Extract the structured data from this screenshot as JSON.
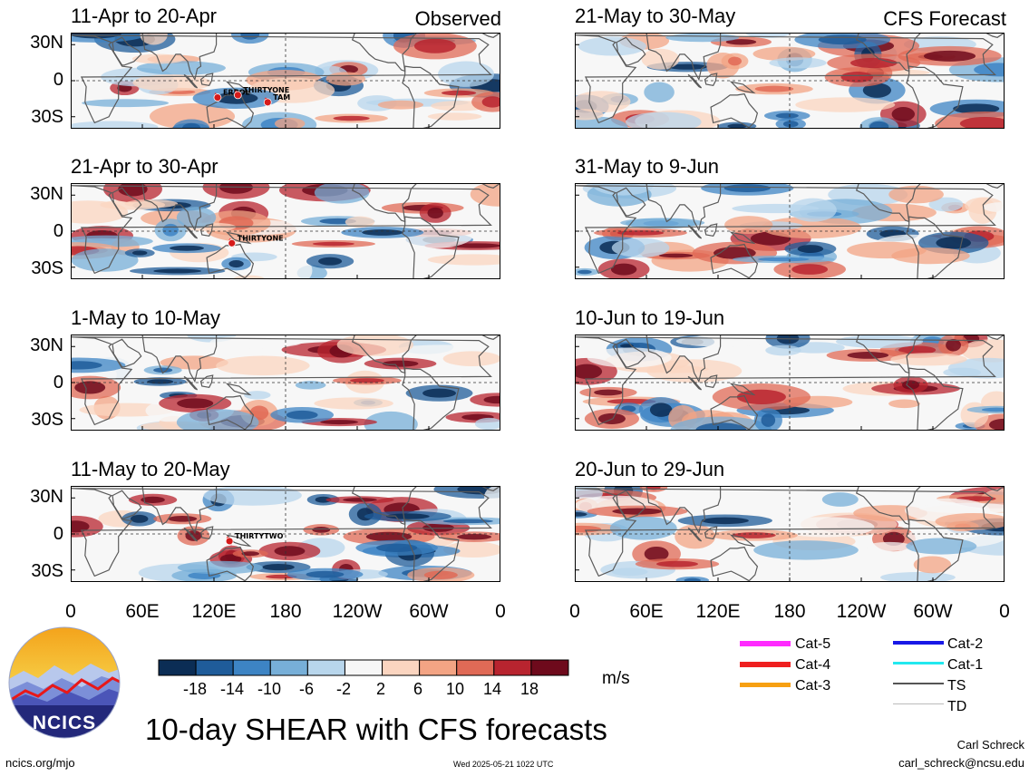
{
  "columns": [
    {
      "tag": "Observed",
      "panels": [
        {
          "title": "11-Apr to 20-Apr",
          "storms": [
            {
              "name": "ERROL",
              "lon": 123,
              "lat": -14
            },
            {
              "name": "THIRTYONE",
              "lon": 140,
              "lat": -12
            },
            {
              "name": "TAM",
              "lon": 165,
              "lat": -18
            }
          ]
        },
        {
          "title": "21-Apr to 30-Apr",
          "storms": [
            {
              "name": "THIRTYONE",
              "lon": 135,
              "lat": -10
            }
          ]
        },
        {
          "title": "1-May to 10-May",
          "storms": []
        },
        {
          "title": "11-May to 20-May",
          "storms": [
            {
              "name": "THIRTYTWO",
              "lon": 133,
              "lat": -6
            }
          ]
        }
      ]
    },
    {
      "tag": "CFS Forecast",
      "panels": [
        {
          "title": "21-May to 30-May",
          "storms": []
        },
        {
          "title": "31-May to 9-Jun",
          "storms": []
        },
        {
          "title": "10-Jun to 19-Jun",
          "storms": []
        },
        {
          "title": "20-Jun to 29-Jun",
          "storms": []
        }
      ]
    }
  ],
  "lat_ticks": [
    "30N",
    "0",
    "30S"
  ],
  "lon_ticks": [
    "0",
    "60E",
    "120E",
    "180",
    "120W",
    "60W",
    "0"
  ],
  "colorbar": {
    "labels": [
      "-18",
      "-14",
      "-10",
      "-6",
      "-2",
      "2",
      "6",
      "10",
      "14",
      "18"
    ],
    "colors": [
      "#0b2d55",
      "#1f5c9a",
      "#3d84c4",
      "#77afd8",
      "#b8d6ec",
      "#f7f7f7",
      "#fbd5c0",
      "#f3a484",
      "#e06a56",
      "#b8242f",
      "#6e0a1c"
    ],
    "unit": "m/s"
  },
  "legend": {
    "left": [
      {
        "label": "Cat-5",
        "color": "#ff2bff",
        "width": 6
      },
      {
        "label": "Cat-4",
        "color": "#ef1f1f",
        "width": 6
      },
      {
        "label": "Cat-3",
        "color": "#f7a012",
        "width": 5
      }
    ],
    "right": [
      {
        "label": "Cat-2",
        "color": "#1818e6",
        "width": 4
      },
      {
        "label": "Cat-1",
        "color": "#22e8ef",
        "width": 3
      },
      {
        "label": "TS",
        "color": "#555555",
        "width": 2
      },
      {
        "label": "TD",
        "color": "#bbbbbb",
        "width": 1
      }
    ]
  },
  "logo": {
    "text": "NCICS"
  },
  "footer": {
    "main_title": "10-day SHEAR with CFS forecasts",
    "url": "ncics.org/mjo",
    "timestamp": "Wed 2025-05-21 1022 UTC",
    "author": "Carl Schreck",
    "email": "carl_schreck@ncsu.edu"
  }
}
